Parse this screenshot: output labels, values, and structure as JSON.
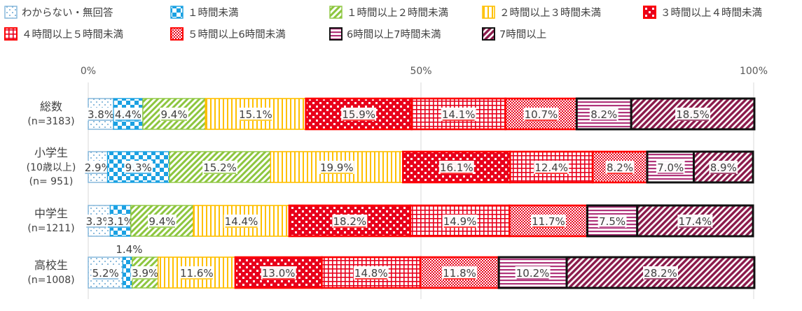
{
  "chart_data": {
    "type": "bar",
    "orientation": "horizontal",
    "stacked": "percent",
    "categories": [
      {
        "lines": [
          "総数",
          "(n=3183)"
        ]
      },
      {
        "lines": [
          "小学生",
          "(10歳以上)",
          "(n= 951)"
        ]
      },
      {
        "lines": [
          "中学生",
          "(n=1211)"
        ]
      },
      {
        "lines": [
          "高校生",
          "(n=1008)"
        ]
      }
    ],
    "series": [
      {
        "name": "わからない・無回答",
        "values": [
          3.8,
          2.9,
          3.3,
          5.2
        ],
        "labels": [
          "3.8%",
          "2.9%",
          "3.3%",
          "5.2%"
        ],
        "color": "#7fb3d8",
        "pattern": "dots"
      },
      {
        "name": "１時間未満",
        "values": [
          4.4,
          9.3,
          3.1,
          1.4
        ],
        "labels": [
          "4.4%",
          "9.3%",
          "3.1%",
          "1.4%"
        ],
        "color": "#1ba1e2",
        "pattern": "checker"
      },
      {
        "name": "１時間以上２時間未満",
        "values": [
          9.4,
          15.2,
          9.4,
          3.9
        ],
        "labels": [
          "9.4%",
          "15.2%",
          "9.4%",
          "3.9%"
        ],
        "color": "#8dc63f",
        "pattern": "diagonal"
      },
      {
        "name": "２時間以上３時間未満",
        "values": [
          15.1,
          19.9,
          14.4,
          11.6
        ],
        "labels": [
          "15.1%",
          "19.9%",
          "14.4%",
          "11.6%"
        ],
        "color": "#ffc000",
        "pattern": "vertical"
      },
      {
        "name": "３時間以上４時間未満",
        "values": [
          15.9,
          16.1,
          18.2,
          13.0
        ],
        "labels": [
          "15.9%",
          "16.1%",
          "18.2%",
          "13.0%"
        ],
        "color": "#e8001c",
        "pattern": "bigchecker"
      },
      {
        "name": "４時間以上５時間未満",
        "values": [
          14.1,
          12.4,
          14.9,
          14.8
        ],
        "labels": [
          "14.1%",
          "12.4%",
          "14.9%",
          "14.8%"
        ],
        "color": "#e8001c",
        "pattern": "grid"
      },
      {
        "name": "５時間以上6時間未満",
        "values": [
          10.7,
          8.2,
          11.7,
          11.8
        ],
        "labels": [
          "10.7%",
          "8.2%",
          "11.7%",
          "11.8%"
        ],
        "color": "#e8001c",
        "pattern": "smallchecker"
      },
      {
        "name": "6時間以上7時間未満",
        "values": [
          8.2,
          7.0,
          7.5,
          10.2
        ],
        "labels": [
          "8.2%",
          "7.0%",
          "7.5%",
          "10.2%"
        ],
        "color": "#b0337a",
        "pattern": "horizontal"
      },
      {
        "name": "7時間以上",
        "values": [
          18.5,
          8.9,
          17.4,
          28.2
        ],
        "labels": [
          "18.5%",
          "8.9%",
          "17.4%",
          "28.2%"
        ],
        "color": "#8b1a4b",
        "pattern": "wide-diagonal"
      }
    ],
    "x_ticks": [
      "0%",
      "50%",
      "100%"
    ],
    "xlim": [
      0,
      100
    ],
    "grid": true,
    "legend_position": "top"
  }
}
